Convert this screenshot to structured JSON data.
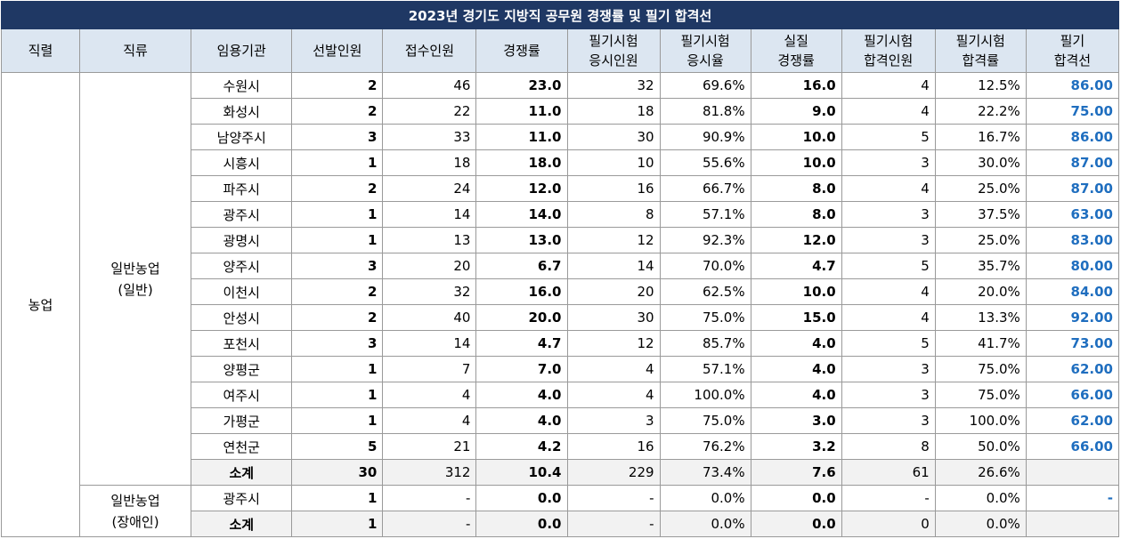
{
  "title": "2023년 경기도 지방직 공무원 경쟁률 및 필기 합격선",
  "headers": {
    "jikryeol": "직렬",
    "jikryu": "직류",
    "agency": "임용기관",
    "select": "선발인원",
    "apply": "접수인원",
    "ratio": "경쟁률",
    "exam_takers_l1": "필기시험",
    "exam_takers_l2": "응시인원",
    "exam_rate_l1": "필기시험",
    "exam_rate_l2": "응시율",
    "real_ratio_l1": "실질",
    "real_ratio_l2": "경쟁률",
    "pass_count_l1": "필기시험",
    "pass_count_l2": "합격인원",
    "pass_rate_l1": "필기시험",
    "pass_rate_l2": "합격률",
    "cutoff_l1": "필기",
    "cutoff_l2": "합격선"
  },
  "jikryeol": "농업",
  "group1": {
    "name_l1": "일반농업",
    "name_l2": "(일반)",
    "rows": [
      {
        "agency": "수원시",
        "select": "2",
        "apply": "46",
        "ratio": "23.0",
        "takers": "32",
        "exam_rate": "69.6%",
        "real": "16.0",
        "pass": "4",
        "pass_rate": "12.5%",
        "cutoff": "86.00"
      },
      {
        "agency": "화성시",
        "select": "2",
        "apply": "22",
        "ratio": "11.0",
        "takers": "18",
        "exam_rate": "81.8%",
        "real": "9.0",
        "pass": "4",
        "pass_rate": "22.2%",
        "cutoff": "75.00"
      },
      {
        "agency": "남양주시",
        "select": "3",
        "apply": "33",
        "ratio": "11.0",
        "takers": "30",
        "exam_rate": "90.9%",
        "real": "10.0",
        "pass": "5",
        "pass_rate": "16.7%",
        "cutoff": "86.00"
      },
      {
        "agency": "시흥시",
        "select": "1",
        "apply": "18",
        "ratio": "18.0",
        "takers": "10",
        "exam_rate": "55.6%",
        "real": "10.0",
        "pass": "3",
        "pass_rate": "30.0%",
        "cutoff": "87.00"
      },
      {
        "agency": "파주시",
        "select": "2",
        "apply": "24",
        "ratio": "12.0",
        "takers": "16",
        "exam_rate": "66.7%",
        "real": "8.0",
        "pass": "4",
        "pass_rate": "25.0%",
        "cutoff": "87.00"
      },
      {
        "agency": "광주시",
        "select": "1",
        "apply": "14",
        "ratio": "14.0",
        "takers": "8",
        "exam_rate": "57.1%",
        "real": "8.0",
        "pass": "3",
        "pass_rate": "37.5%",
        "cutoff": "63.00"
      },
      {
        "agency": "광명시",
        "select": "1",
        "apply": "13",
        "ratio": "13.0",
        "takers": "12",
        "exam_rate": "92.3%",
        "real": "12.0",
        "pass": "3",
        "pass_rate": "25.0%",
        "cutoff": "83.00"
      },
      {
        "agency": "양주시",
        "select": "3",
        "apply": "20",
        "ratio": "6.7",
        "takers": "14",
        "exam_rate": "70.0%",
        "real": "4.7",
        "pass": "5",
        "pass_rate": "35.7%",
        "cutoff": "80.00"
      },
      {
        "agency": "이천시",
        "select": "2",
        "apply": "32",
        "ratio": "16.0",
        "takers": "20",
        "exam_rate": "62.5%",
        "real": "10.0",
        "pass": "4",
        "pass_rate": "20.0%",
        "cutoff": "84.00"
      },
      {
        "agency": "안성시",
        "select": "2",
        "apply": "40",
        "ratio": "20.0",
        "takers": "30",
        "exam_rate": "75.0%",
        "real": "15.0",
        "pass": "4",
        "pass_rate": "13.3%",
        "cutoff": "92.00"
      },
      {
        "agency": "포천시",
        "select": "3",
        "apply": "14",
        "ratio": "4.7",
        "takers": "12",
        "exam_rate": "85.7%",
        "real": "4.0",
        "pass": "5",
        "pass_rate": "41.7%",
        "cutoff": "73.00"
      },
      {
        "agency": "양평군",
        "select": "1",
        "apply": "7",
        "ratio": "7.0",
        "takers": "4",
        "exam_rate": "57.1%",
        "real": "4.0",
        "pass": "3",
        "pass_rate": "75.0%",
        "cutoff": "62.00"
      },
      {
        "agency": "여주시",
        "select": "1",
        "apply": "4",
        "ratio": "4.0",
        "takers": "4",
        "exam_rate": "100.0%",
        "real": "4.0",
        "pass": "3",
        "pass_rate": "75.0%",
        "cutoff": "66.00"
      },
      {
        "agency": "가평군",
        "select": "1",
        "apply": "4",
        "ratio": "4.0",
        "takers": "3",
        "exam_rate": "75.0%",
        "real": "3.0",
        "pass": "3",
        "pass_rate": "100.0%",
        "cutoff": "62.00"
      },
      {
        "agency": "연천군",
        "select": "5",
        "apply": "21",
        "ratio": "4.2",
        "takers": "16",
        "exam_rate": "76.2%",
        "real": "3.2",
        "pass": "8",
        "pass_rate": "50.0%",
        "cutoff": "66.00"
      }
    ],
    "subtotal": {
      "agency": "소계",
      "select": "30",
      "apply": "312",
      "ratio": "10.4",
      "takers": "229",
      "exam_rate": "73.4%",
      "real": "7.6",
      "pass": "61",
      "pass_rate": "26.6%",
      "cutoff": ""
    }
  },
  "group2": {
    "name_l1": "일반농업",
    "name_l2": "(장애인)",
    "rows": [
      {
        "agency": "광주시",
        "select": "1",
        "apply": "-",
        "ratio": "0.0",
        "takers": "-",
        "exam_rate": "0.0%",
        "real": "0.0",
        "pass": "-",
        "pass_rate": "0.0%",
        "cutoff": "-"
      }
    ],
    "subtotal": {
      "agency": "소계",
      "select": "1",
      "apply": "-",
      "ratio": "0.0",
      "takers": "-",
      "exam_rate": "0.0%",
      "real": "0.0",
      "pass": "0",
      "pass_rate": "0.0%",
      "cutoff": ""
    }
  }
}
